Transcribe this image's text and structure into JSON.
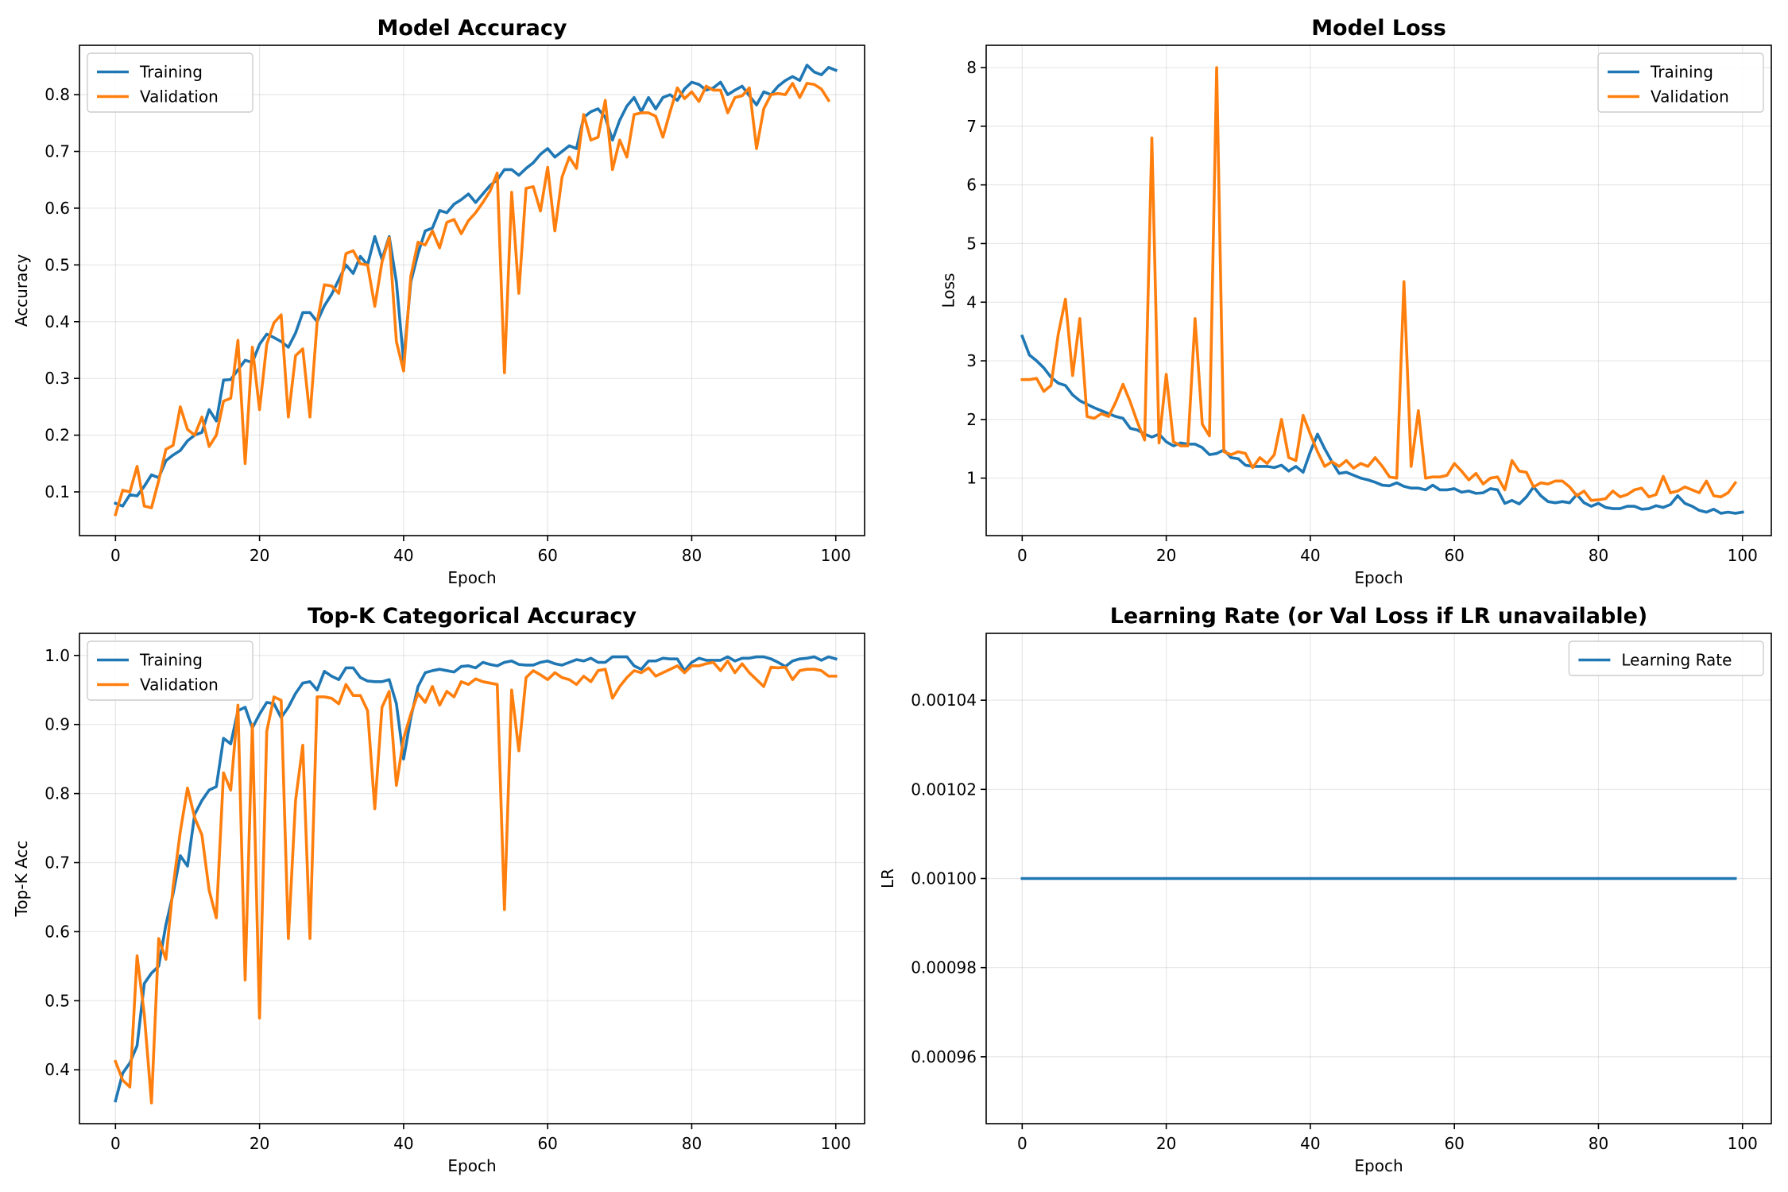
{
  "figure": {
    "background": "#ffffff"
  },
  "chart_data": [
    {
      "type": "line",
      "title": "Model Accuracy",
      "xlabel": "Epoch",
      "ylabel": "Accuracy",
      "xlim": [
        -5,
        104
      ],
      "ylim": [
        0.023,
        0.887
      ],
      "xticks": [
        0,
        20,
        40,
        60,
        80,
        100
      ],
      "yticks": [
        0.1,
        0.2,
        0.3,
        0.4,
        0.5,
        0.6,
        0.7,
        0.8
      ],
      "yticklabels": [
        "0.1",
        "0.2",
        "0.3",
        "0.4",
        "0.5",
        "0.6",
        "0.7",
        "0.8"
      ],
      "grid": true,
      "legend": "top-left",
      "series": [
        {
          "name": "Training",
          "color": "#1f77b4",
          "values": [
            0.08,
            0.075,
            0.095,
            0.093,
            0.11,
            0.13,
            0.125,
            0.155,
            0.165,
            0.173,
            0.19,
            0.2,
            0.205,
            0.245,
            0.225,
            0.297,
            0.298,
            0.315,
            0.332,
            0.328,
            0.36,
            0.378,
            0.372,
            0.365,
            0.355,
            0.38,
            0.416,
            0.416,
            0.4,
            0.428,
            0.448,
            0.474,
            0.5,
            0.485,
            0.515,
            0.5,
            0.55,
            0.51,
            0.55,
            0.47,
            0.33,
            0.47,
            0.52,
            0.56,
            0.565,
            0.596,
            0.592,
            0.607,
            0.615,
            0.625,
            0.61,
            0.625,
            0.64,
            0.65,
            0.668,
            0.668,
            0.658,
            0.67,
            0.68,
            0.695,
            0.705,
            0.69,
            0.7,
            0.71,
            0.705,
            0.76,
            0.77,
            0.775,
            0.76,
            0.72,
            0.755,
            0.78,
            0.795,
            0.77,
            0.795,
            0.775,
            0.795,
            0.8,
            0.79,
            0.81,
            0.822,
            0.818,
            0.808,
            0.812,
            0.822,
            0.8,
            0.808,
            0.815,
            0.798,
            0.782,
            0.805,
            0.8,
            0.815,
            0.825,
            0.832,
            0.825,
            0.852,
            0.84,
            0.835,
            0.848,
            0.843
          ]
        },
        {
          "name": "Validation",
          "color": "#ff7f0e",
          "values": [
            0.06,
            0.103,
            0.1,
            0.145,
            0.075,
            0.072,
            0.12,
            0.175,
            0.182,
            0.25,
            0.21,
            0.2,
            0.232,
            0.18,
            0.2,
            0.26,
            0.265,
            0.367,
            0.15,
            0.355,
            0.245,
            0.36,
            0.398,
            0.412,
            0.232,
            0.34,
            0.352,
            0.232,
            0.4,
            0.465,
            0.463,
            0.45,
            0.52,
            0.525,
            0.502,
            0.5,
            0.427,
            0.505,
            0.548,
            0.365,
            0.313,
            0.48,
            0.54,
            0.535,
            0.56,
            0.53,
            0.575,
            0.58,
            0.555,
            0.578,
            0.592,
            0.61,
            0.63,
            0.662,
            0.31,
            0.628,
            0.45,
            0.635,
            0.638,
            0.595,
            0.672,
            0.56,
            0.655,
            0.69,
            0.67,
            0.765,
            0.72,
            0.725,
            0.79,
            0.668,
            0.72,
            0.69,
            0.765,
            0.768,
            0.768,
            0.762,
            0.725,
            0.77,
            0.812,
            0.793,
            0.805,
            0.788,
            0.815,
            0.808,
            0.808,
            0.768,
            0.795,
            0.798,
            0.812,
            0.705,
            0.775,
            0.8,
            0.802,
            0.8,
            0.82,
            0.795,
            0.82,
            0.818,
            0.81,
            0.79
          ]
        }
      ]
    },
    {
      "type": "line",
      "title": "Model Loss",
      "xlabel": "Epoch",
      "ylabel": "Loss",
      "xlim": [
        -5,
        104
      ],
      "ylim": [
        0.02,
        8.38
      ],
      "xticks": [
        0,
        20,
        40,
        60,
        80,
        100
      ],
      "yticks": [
        1,
        2,
        3,
        4,
        5,
        6,
        7,
        8
      ],
      "yticklabels": [
        "1",
        "2",
        "3",
        "4",
        "5",
        "6",
        "7",
        "8"
      ],
      "grid": true,
      "legend": "top-right",
      "series": [
        {
          "name": "Training",
          "color": "#1f77b4",
          "values": [
            3.42,
            3.1,
            3.0,
            2.88,
            2.72,
            2.62,
            2.58,
            2.42,
            2.32,
            2.26,
            2.2,
            2.15,
            2.1,
            2.05,
            2.02,
            1.85,
            1.82,
            1.75,
            1.7,
            1.75,
            1.62,
            1.55,
            1.6,
            1.58,
            1.58,
            1.52,
            1.4,
            1.42,
            1.48,
            1.35,
            1.33,
            1.22,
            1.2,
            1.2,
            1.2,
            1.18,
            1.22,
            1.12,
            1.2,
            1.1,
            1.45,
            1.75,
            1.5,
            1.28,
            1.08,
            1.1,
            1.05,
            1.0,
            0.97,
            0.93,
            0.88,
            0.87,
            0.92,
            0.86,
            0.83,
            0.83,
            0.8,
            0.88,
            0.8,
            0.8,
            0.82,
            0.76,
            0.78,
            0.74,
            0.75,
            0.82,
            0.8,
            0.57,
            0.62,
            0.56,
            0.68,
            0.85,
            0.7,
            0.6,
            0.58,
            0.6,
            0.58,
            0.72,
            0.58,
            0.52,
            0.57,
            0.5,
            0.48,
            0.48,
            0.52,
            0.52,
            0.47,
            0.48,
            0.53,
            0.5,
            0.55,
            0.7,
            0.57,
            0.52,
            0.45,
            0.42,
            0.47,
            0.4,
            0.42,
            0.4,
            0.42
          ]
        },
        {
          "name": "Validation",
          "color": "#ff7f0e",
          "values": [
            2.68,
            2.68,
            2.7,
            2.48,
            2.58,
            3.45,
            4.05,
            2.75,
            3.72,
            2.05,
            2.02,
            2.1,
            2.05,
            2.3,
            2.6,
            2.3,
            1.95,
            1.65,
            6.8,
            1.6,
            2.77,
            1.62,
            1.55,
            1.55,
            3.72,
            1.92,
            1.72,
            8.0,
            1.45,
            1.4,
            1.45,
            1.42,
            1.18,
            1.35,
            1.25,
            1.4,
            2.0,
            1.35,
            1.3,
            2.07,
            1.75,
            1.45,
            1.2,
            1.28,
            1.2,
            1.3,
            1.17,
            1.25,
            1.2,
            1.35,
            1.2,
            1.02,
            1.0,
            4.35,
            1.2,
            2.15,
            1.0,
            1.02,
            1.02,
            1.05,
            1.25,
            1.12,
            0.97,
            1.08,
            0.9,
            1.0,
            1.02,
            0.8,
            1.3,
            1.12,
            1.1,
            0.85,
            0.92,
            0.9,
            0.95,
            0.95,
            0.85,
            0.7,
            0.78,
            0.62,
            0.63,
            0.65,
            0.78,
            0.68,
            0.72,
            0.8,
            0.83,
            0.68,
            0.72,
            1.03,
            0.75,
            0.78,
            0.85,
            0.8,
            0.75,
            0.95,
            0.7,
            0.68,
            0.75,
            0.92
          ]
        }
      ]
    },
    {
      "type": "line",
      "title": "Top-K Categorical Accuracy",
      "xlabel": "Epoch",
      "ylabel": "Top-K Acc",
      "xlim": [
        -5,
        104
      ],
      "ylim": [
        0.322,
        1.032
      ],
      "xticks": [
        0,
        20,
        40,
        60,
        80,
        100
      ],
      "yticks": [
        0.4,
        0.5,
        0.6,
        0.7,
        0.8,
        0.9,
        1.0
      ],
      "yticklabels": [
        "0.4",
        "0.5",
        "0.6",
        "0.7",
        "0.8",
        "0.9",
        "1.0"
      ],
      "grid": true,
      "legend": "top-left",
      "series": [
        {
          "name": "Training",
          "color": "#1f77b4",
          "values": [
            0.355,
            0.395,
            0.41,
            0.435,
            0.525,
            0.54,
            0.55,
            0.61,
            0.655,
            0.71,
            0.695,
            0.77,
            0.79,
            0.805,
            0.81,
            0.88,
            0.872,
            0.92,
            0.925,
            0.895,
            0.915,
            0.932,
            0.93,
            0.91,
            0.925,
            0.945,
            0.96,
            0.962,
            0.95,
            0.977,
            0.97,
            0.965,
            0.982,
            0.982,
            0.968,
            0.963,
            0.962,
            0.962,
            0.965,
            0.93,
            0.85,
            0.91,
            0.955,
            0.975,
            0.978,
            0.98,
            0.978,
            0.976,
            0.984,
            0.985,
            0.982,
            0.99,
            0.987,
            0.985,
            0.99,
            0.992,
            0.987,
            0.986,
            0.986,
            0.99,
            0.992,
            0.988,
            0.986,
            0.99,
            0.994,
            0.992,
            0.996,
            0.99,
            0.99,
            0.998,
            0.998,
            0.998,
            0.985,
            0.98,
            0.992,
            0.992,
            0.996,
            0.995,
            0.995,
            0.978,
            0.99,
            0.996,
            0.993,
            0.993,
            0.993,
            0.998,
            0.992,
            0.996,
            0.996,
            0.998,
            0.998,
            0.995,
            0.99,
            0.984,
            0.992,
            0.995,
            0.996,
            0.998,
            0.993,
            0.998,
            0.995
          ]
        },
        {
          "name": "Validation",
          "color": "#ff7f0e",
          "values": [
            0.412,
            0.385,
            0.375,
            0.565,
            0.48,
            0.352,
            0.59,
            0.56,
            0.665,
            0.745,
            0.808,
            0.765,
            0.74,
            0.66,
            0.62,
            0.83,
            0.805,
            0.928,
            0.53,
            0.9,
            0.475,
            0.89,
            0.94,
            0.935,
            0.59,
            0.79,
            0.87,
            0.59,
            0.94,
            0.94,
            0.938,
            0.93,
            0.958,
            0.942,
            0.942,
            0.92,
            0.778,
            0.925,
            0.948,
            0.812,
            0.88,
            0.915,
            0.945,
            0.932,
            0.955,
            0.928,
            0.948,
            0.94,
            0.962,
            0.958,
            0.966,
            0.962,
            0.96,
            0.958,
            0.632,
            0.95,
            0.862,
            0.968,
            0.978,
            0.972,
            0.965,
            0.975,
            0.968,
            0.965,
            0.958,
            0.97,
            0.962,
            0.978,
            0.98,
            0.938,
            0.955,
            0.968,
            0.978,
            0.975,
            0.982,
            0.97,
            0.975,
            0.98,
            0.985,
            0.975,
            0.985,
            0.985,
            0.988,
            0.99,
            0.978,
            0.992,
            0.975,
            0.988,
            0.975,
            0.965,
            0.955,
            0.983,
            0.982,
            0.983,
            0.965,
            0.978,
            0.98,
            0.98,
            0.978,
            0.97,
            0.97
          ]
        }
      ]
    },
    {
      "type": "line",
      "title": "Learning Rate (or Val Loss if LR unavailable)",
      "xlabel": "Epoch",
      "ylabel": "LR",
      "xlim": [
        -5,
        104
      ],
      "ylim": [
        0.000945,
        0.001055
      ],
      "xticks": [
        0,
        20,
        40,
        60,
        80,
        100
      ],
      "yticks": [
        0.00096,
        0.00098,
        0.001,
        0.00102,
        0.00104
      ],
      "yticklabels": [
        "0.00096",
        "0.00098",
        "0.00100",
        "0.00102",
        "0.00104"
      ],
      "grid": true,
      "legend": "top-right",
      "series": [
        {
          "name": "Learning Rate",
          "color": "#1f77b4",
          "x": [
            0,
            99
          ],
          "values": [
            0.001,
            0.001
          ]
        }
      ]
    }
  ]
}
